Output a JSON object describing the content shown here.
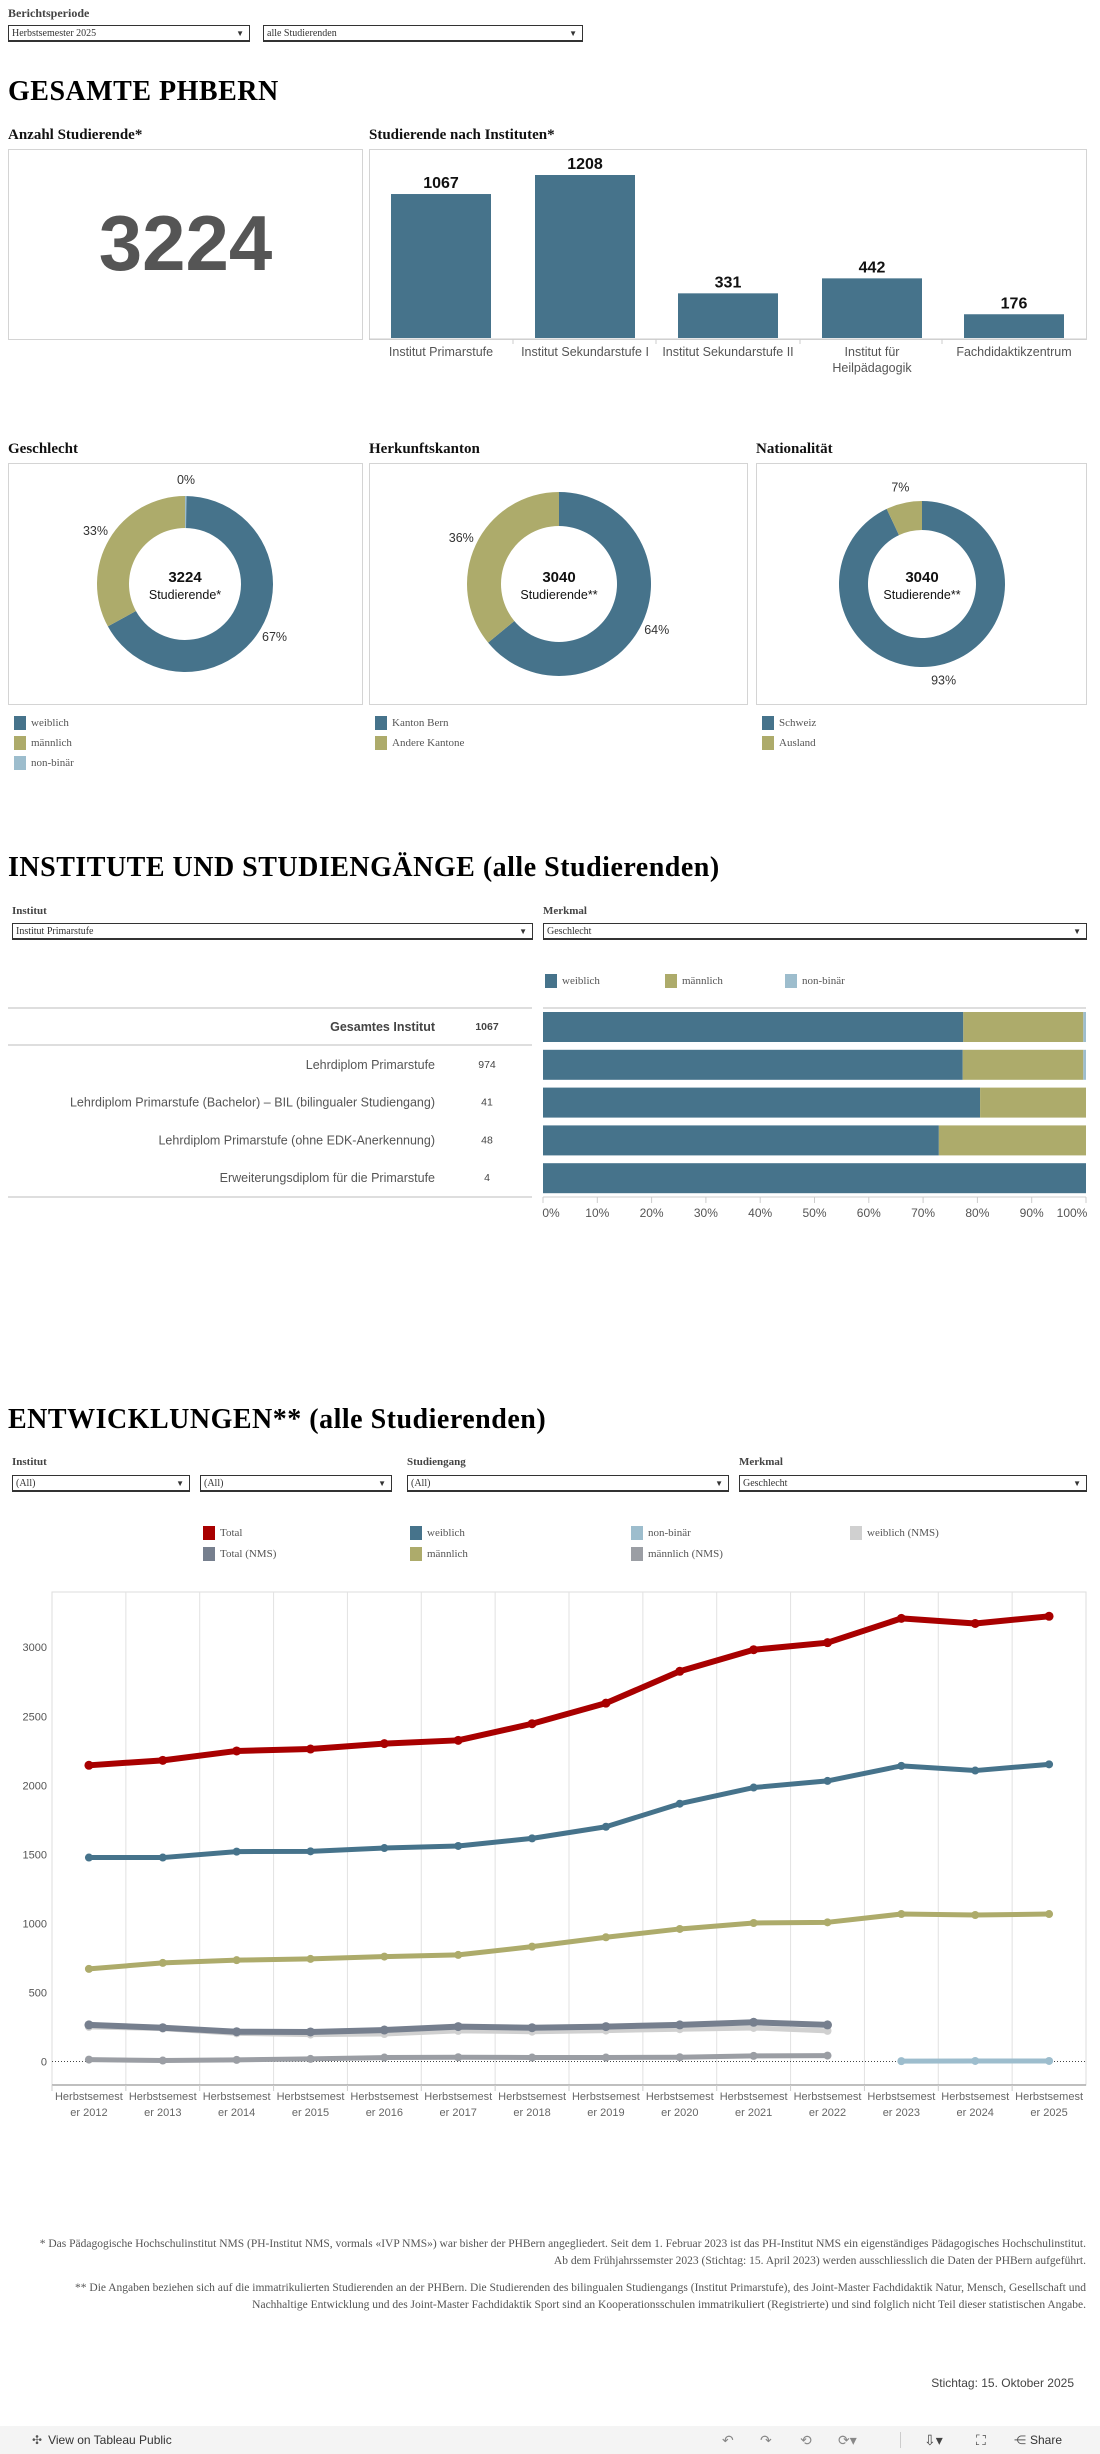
{
  "filters": {
    "label": "Berichtsperiode",
    "period": "Herbstsemester 2025",
    "population": "alle Studierenden"
  },
  "overview": {
    "title": "GESAMTE PHBERN",
    "count_title": "Anzahl Studierende*",
    "count_value": "3224",
    "institutes_title": "Studierende nach Instituten*"
  },
  "colors": {
    "weiblich": "#46738b",
    "maennlich": "#adab6b",
    "nonbinaer": "#9dbdcd",
    "total": "#a80000",
    "total_nms": "#767f8e",
    "weiblich_nms": "#d0d0d0",
    "maennlich_nms": "#9b9ea4"
  },
  "donuts": [
    {
      "title": "Geschlecht",
      "center_value": "3224",
      "center_label": "Studierende*",
      "slices": [
        {
          "name": "weiblich",
          "value": 67,
          "label": "67%",
          "color": "#46738b"
        },
        {
          "name": "männlich",
          "value": 33,
          "label": "33%",
          "color": "#adab6b"
        },
        {
          "name": "non-binär",
          "value": 0,
          "label": "0%",
          "color": "#9dbdcd"
        }
      ]
    },
    {
      "title": "Herkunftskanton",
      "center_value": "3040",
      "center_label": "Studierende**",
      "slices": [
        {
          "name": "Kanton Bern",
          "value": 64,
          "label": "64%",
          "color": "#46738b"
        },
        {
          "name": "Andere Kantone",
          "value": 36,
          "label": "36%",
          "color": "#adab6b"
        }
      ]
    },
    {
      "title": "Nationalität",
      "center_value": "3040",
      "center_label": "Studierende**",
      "slices": [
        {
          "name": "Schweiz",
          "value": 93,
          "label": "93%",
          "color": "#46738b"
        },
        {
          "name": "Ausland",
          "value": 7,
          "label": "7%",
          "color": "#adab6b"
        }
      ]
    }
  ],
  "section2": {
    "title": "INSTITUTE UND STUDIENGÄNGE (alle Studierenden)",
    "institut_label": "Institut",
    "institut_value": "Institut Primarstufe",
    "merkmal_label": "Merkmal",
    "merkmal_value": "Geschlecht",
    "legend": [
      "weiblich",
      "männlich",
      "non-binär"
    ],
    "rows": [
      {
        "name": "Gesamtes Institut",
        "count": "1067",
        "bold": true
      },
      {
        "name": "Lehrdiplom Primarstufe",
        "count": "974"
      },
      {
        "name": "Lehrdiplom Primarstufe (Bachelor) – BIL (bilingualer Studiengang)",
        "count": "41"
      },
      {
        "name": "Lehrdiplom Primarstufe (ohne EDK-Anerkennung)",
        "count": "48"
      },
      {
        "name": "Erweiterungsdiplom für die Primarstufe",
        "count": "4"
      }
    ],
    "x_ticks": [
      "0%",
      "10%",
      "20%",
      "30%",
      "40%",
      "50%",
      "60%",
      "70%",
      "80%",
      "90%",
      "100%"
    ]
  },
  "section3": {
    "title": "ENTWICKLUNGEN** (alle Studierenden)",
    "institut_label": "Institut",
    "institut_value": "(All)",
    "second_value": "(All)",
    "studiengang_label": "Studiengang",
    "studiengang_value": "(All)",
    "merkmal_label": "Merkmal",
    "merkmal_value": "Geschlecht"
  },
  "chart_data": [
    {
      "type": "bar",
      "title": "Studierende nach Instituten*",
      "categories": [
        "Institut Primarstufe",
        "Institut Sekundarstufe I",
        "Institut Sekundarstufe II",
        "Institut für Heilpädagogik",
        "Fachdidaktikzentrum"
      ],
      "values": [
        1067,
        1208,
        331,
        442,
        176
      ]
    },
    {
      "type": "bar",
      "stacked": "100%",
      "orientation": "horizontal",
      "categories": [
        "Gesamtes Institut",
        "Lehrdiplom Primarstufe",
        "Lehrdiplom Primarstufe (Bachelor) – BIL (bilingualer Studiengang)",
        "Lehrdiplom Primarstufe (ohne EDK-Anerkennung)",
        "Erweiterungsdiplom für die Primarstufe"
      ],
      "series": [
        {
          "name": "weiblich",
          "values": [
            77.4,
            77.3,
            80.5,
            72.9,
            100
          ]
        },
        {
          "name": "männlich",
          "values": [
            22.1,
            22.2,
            19.5,
            27.1,
            0
          ]
        },
        {
          "name": "non-binär",
          "values": [
            0.5,
            0.5,
            0,
            0,
            0
          ]
        }
      ],
      "xlim": [
        0,
        100
      ]
    },
    {
      "type": "line",
      "categories": [
        "Herbstsemester 2012",
        "Herbstsemester 2013",
        "Herbstsemester 2014",
        "Herbstsemester 2015",
        "Herbstsemester 2016",
        "Herbstsemester 2017",
        "Herbstsemester 2018",
        "Herbstsemester 2019",
        "Herbstsemester 2020",
        "Herbstsemester 2021",
        "Herbstsemester 2022",
        "Herbstsemester 2023",
        "Herbstsemester 2024",
        "Herbstsemester 2025"
      ],
      "ylim": [
        -170,
        3400
      ],
      "y_ticks": [
        0,
        500,
        1000,
        1500,
        2000,
        2500,
        3000
      ],
      "grid": "vertical",
      "legend_position": "top",
      "series": [
        {
          "name": "Total",
          "color": "#a80000",
          "values": [
            2145,
            2181,
            2249,
            2263,
            2302,
            2326,
            2446,
            2595,
            2826,
            2982,
            3033,
            3209,
            3172,
            3224
          ]
        },
        {
          "name": "weiblich",
          "color": "#46738b",
          "values": [
            1477,
            1477,
            1520,
            1522,
            1546,
            1561,
            1616,
            1700,
            1867,
            1984,
            2032,
            2141,
            2107,
            2152
          ]
        },
        {
          "name": "non-binär",
          "color": "#9dbdcd",
          "values": [
            null,
            null,
            null,
            null,
            null,
            null,
            null,
            null,
            null,
            null,
            null,
            3,
            4,
            4
          ]
        },
        {
          "name": "weiblich (NMS)",
          "color": "#d0d0d0",
          "values": [
            251,
            238,
            204,
            195,
            199,
            222,
            216,
            224,
            234,
            243,
            222,
            null,
            null,
            null
          ]
        },
        {
          "name": "Total (NMS)",
          "color": "#767f8e",
          "values": [
            265,
            245,
            216,
            214,
            228,
            253,
            245,
            253,
            265,
            284,
            265,
            null,
            null,
            null
          ]
        },
        {
          "name": "männlich",
          "color": "#adab6b",
          "values": [
            671,
            714,
            734,
            743,
            760,
            772,
            832,
            900,
            960,
            1003,
            1008,
            1068,
            1061,
            1068
          ]
        },
        {
          "name": "männlich (NMS)",
          "color": "#9b9ea4",
          "values": [
            14,
            7,
            12,
            19,
            29,
            31,
            29,
            29,
            31,
            41,
            43,
            null,
            null,
            null
          ]
        }
      ]
    }
  ],
  "footnotes": [
    "* Das Pädagogische Hochschulinstitut NMS (PH-Institut NMS, vormals «IVP NMS») war bisher der PHBern angegliedert. Seit dem 1. Februar 2023 ist das PH-Institut NMS ein eigenständiges Pädagogisches Hochschulinstitut. Ab dem Frühjahrssemster 2023 (Stichtag: 15. April 2023) werden ausschliesslich die Daten der PHBern aufgeführt.",
    "** Die Angaben beziehen sich auf die immatrikulierten Studierenden an der PHBern. Die Studierenden des bilingualen Studiengangs (Institut Primarstufe), des Joint-Master Fachdidaktik Natur, Mensch, Gesellschaft und Nachhaltige Entwicklung und des Joint-Master Fachdidaktik Sport sind an Kooperationsschulen immatrikuliert (Registrierte) und sind folglich nicht Teil dieser statistischen Angabe."
  ],
  "stichtag": "Stichtag: 15. Oktober 2025",
  "toolbar": {
    "view_label": "View on Tableau Public",
    "share_label": "Share",
    "icons": [
      "tableau-logo-icon",
      "undo-icon",
      "redo-icon",
      "revert-icon",
      "refresh-icon",
      "download-icon",
      "fullscreen-icon",
      "share-icon"
    ]
  }
}
